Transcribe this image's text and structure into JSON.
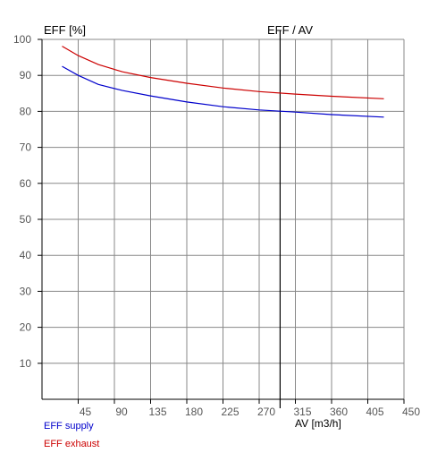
{
  "chart_data": {
    "type": "line",
    "y_axis_title": "EFF [%]",
    "marker_label": "EFF / AV",
    "xlabel": "AV [m3/h]",
    "xlim": [
      0,
      450
    ],
    "ylim": [
      0,
      100
    ],
    "x_ticks": [
      45,
      90,
      135,
      180,
      225,
      270,
      315,
      360,
      405,
      450
    ],
    "y_ticks": [
      10,
      20,
      30,
      40,
      50,
      60,
      70,
      80,
      90,
      100
    ],
    "grid": true,
    "marker_x": 296,
    "series": [
      {
        "name": "EFF supply",
        "color": "#0000cc",
        "x": [
          25,
          45,
          70,
          100,
          135,
          180,
          225,
          270,
          315,
          360,
          425
        ],
        "y": [
          92.5,
          90.0,
          87.5,
          85.8,
          84.3,
          82.6,
          81.3,
          80.4,
          79.8,
          79.1,
          78.4
        ]
      },
      {
        "name": "EFF exhaust",
        "color": "#cc0000",
        "x": [
          25,
          45,
          70,
          100,
          135,
          180,
          225,
          270,
          315,
          360,
          425
        ],
        "y": [
          98.1,
          95.5,
          93.0,
          91.0,
          89.4,
          87.8,
          86.5,
          85.5,
          84.8,
          84.2,
          83.5
        ]
      }
    ],
    "legend_position": "bottom-left"
  },
  "colors": {
    "grid": "#888888",
    "axis": "#000000",
    "tick_text": "#555555"
  }
}
